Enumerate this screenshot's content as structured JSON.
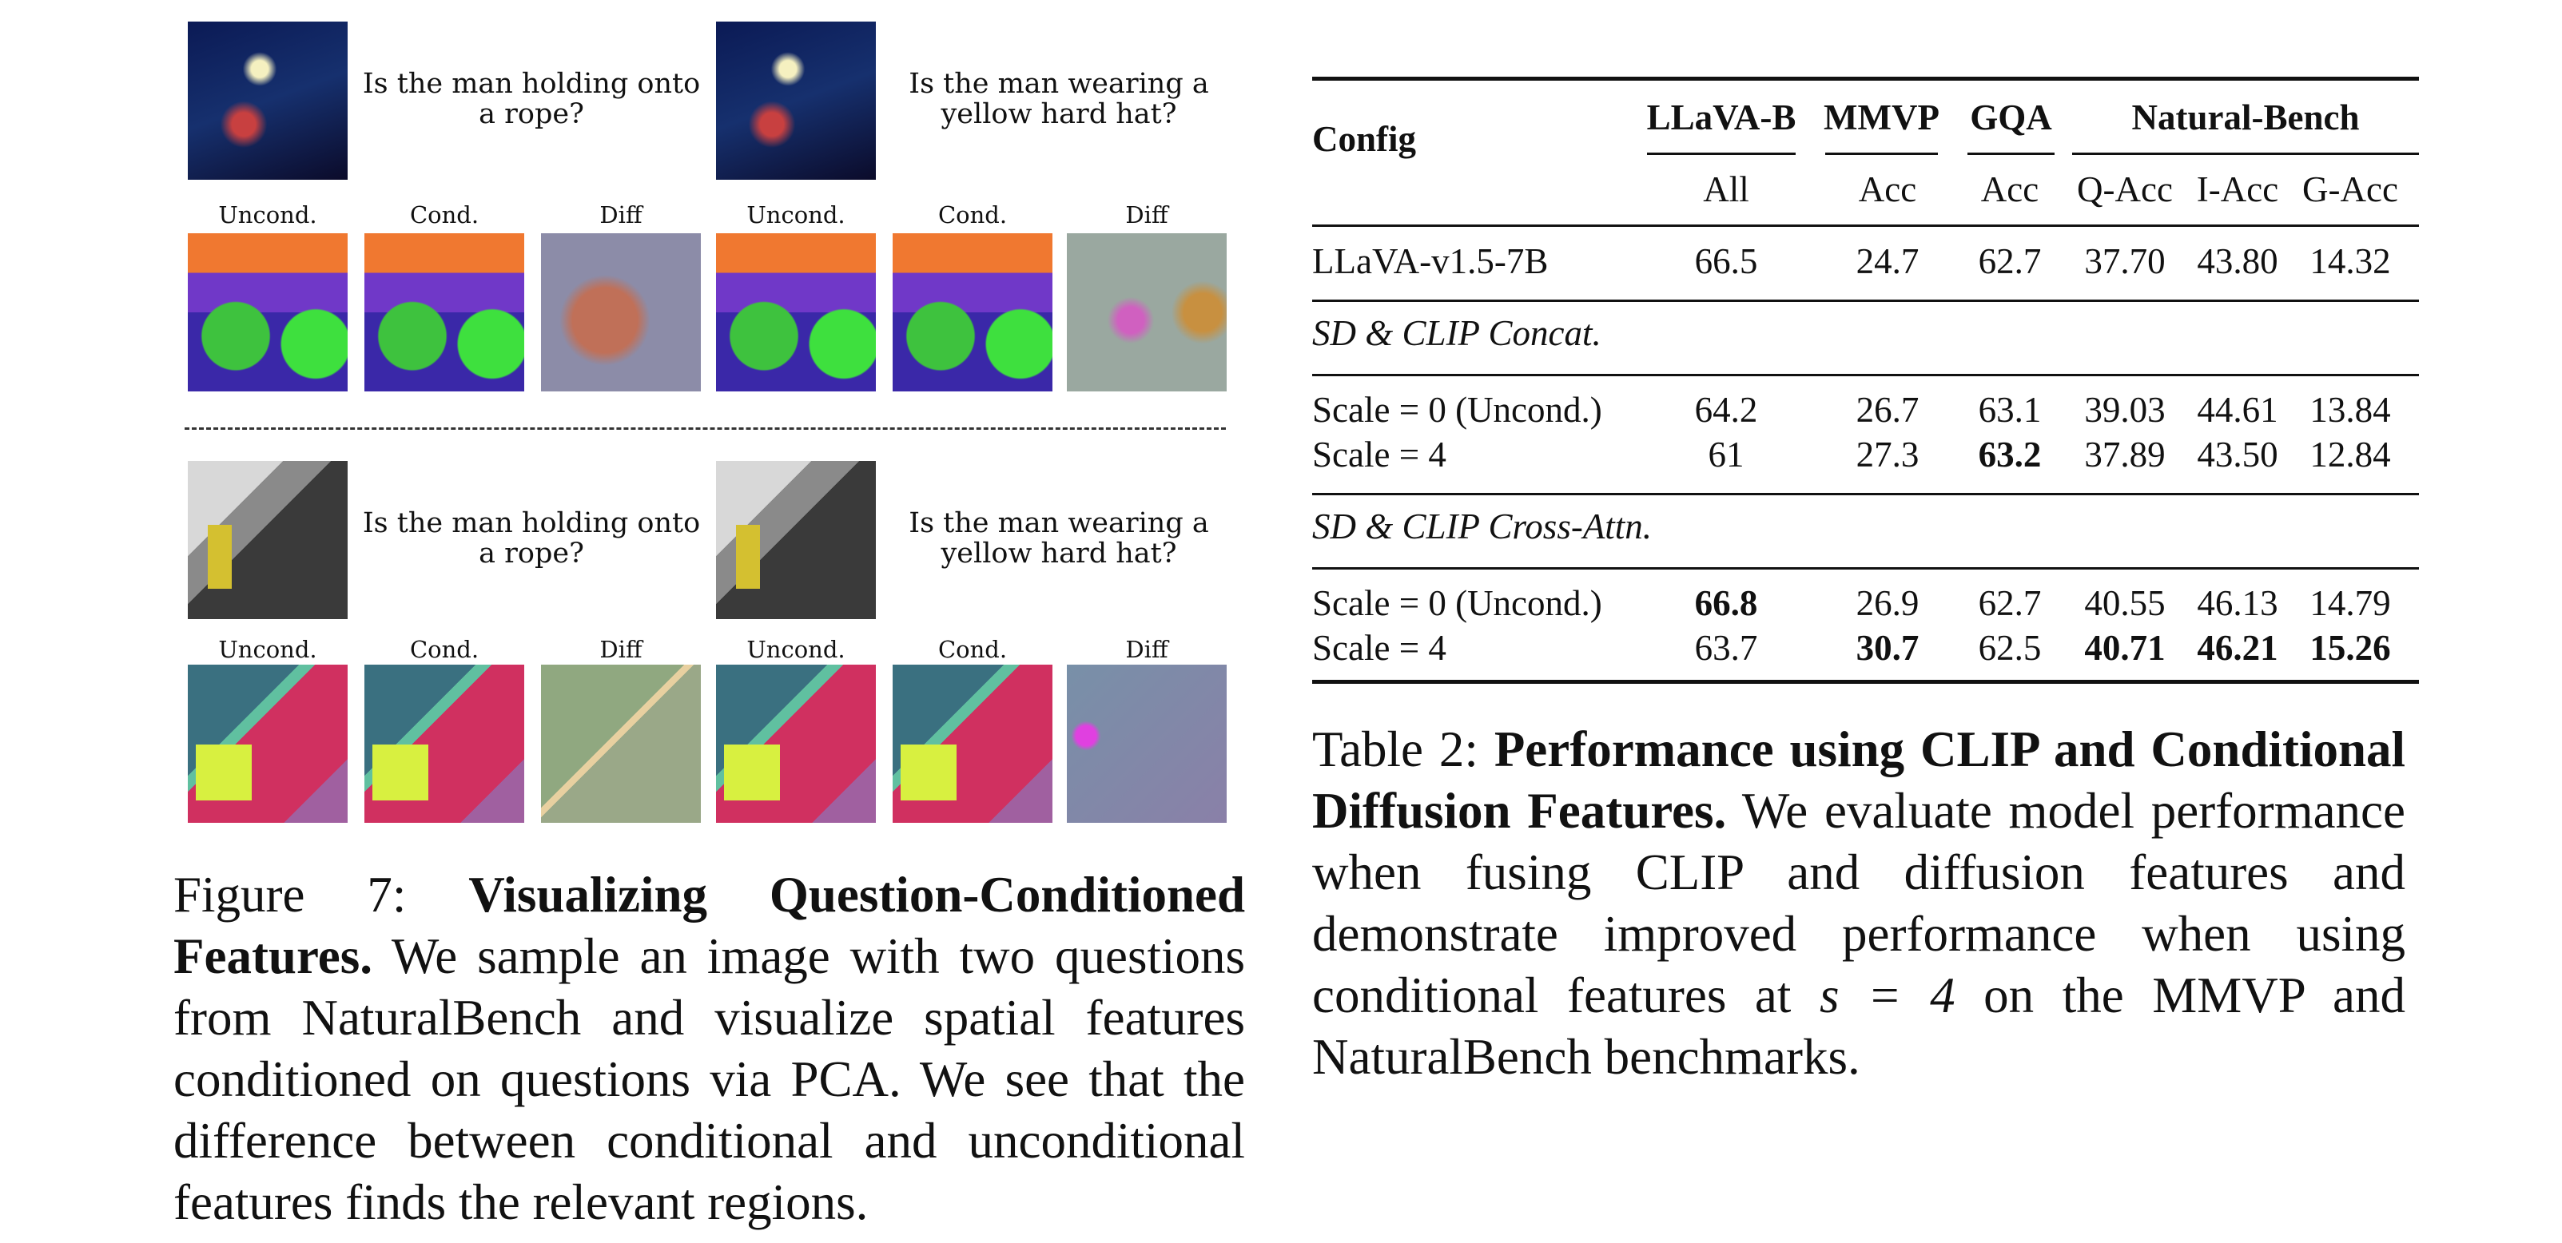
{
  "figure": {
    "panels": [
      {
        "questions": [
          "Is the man holding onto a rope?",
          "Is the man wearing a yellow hard hat?"
        ]
      },
      {
        "questions": [
          "Is the man holding onto a rope?",
          "Is the man wearing a yellow hard hat?"
        ]
      }
    ],
    "labels": [
      "Uncond.",
      "Cond.",
      "Diff"
    ],
    "caption": {
      "label": "Figure 7:",
      "title": "Visualizing Question-Conditioned Features.",
      "text": "We sample an image with two questions from NaturalBench and visualize spatial features conditioned on questions via PCA. We see that the difference between conditional and unconditional features finds the relevant regions."
    }
  },
  "table": {
    "config": "Config",
    "groups": [
      "LLaVA-B",
      "MMVP",
      "GQA",
      "Natural-Bench"
    ],
    "subheaders": [
      "All",
      "Acc",
      "Acc",
      "Q-Acc",
      "I-Acc",
      "G-Acc"
    ],
    "sections": [
      {
        "rows": [
          {
            "cells": [
              "LLaVA-v1.5-7B",
              "66.5",
              "24.7",
              "62.7",
              "37.70",
              "43.80",
              "14.32"
            ],
            "bold": []
          }
        ]
      },
      {
        "title": "SD & CLIP Concat.",
        "rows": [
          {
            "cells": [
              "Scale = 0 (Uncond.)",
              "64.2",
              "26.7",
              "63.1",
              "39.03",
              "44.61",
              "13.84"
            ],
            "bold": []
          },
          {
            "cells": [
              "Scale = 4",
              "61",
              "27.3",
              "63.2",
              "37.89",
              "43.50",
              "12.84"
            ],
            "bold": [
              3
            ]
          }
        ]
      },
      {
        "title": "SD & CLIP Cross-Attn.",
        "rows": [
          {
            "cells": [
              "Scale = 0 (Uncond.)",
              "66.8",
              "26.9",
              "62.7",
              "40.55",
              "46.13",
              "14.79"
            ],
            "bold": [
              1
            ]
          },
          {
            "cells": [
              "Scale = 4",
              "63.7",
              "30.7",
              "62.5",
              "40.71",
              "46.21",
              "15.26"
            ],
            "bold": [
              2,
              4,
              5,
              6
            ]
          }
        ]
      }
    ],
    "caption": {
      "label": "Table 2:",
      "title": "Performance using CLIP and Conditional Diffusion Features.",
      "text_before": "We evaluate model performance when fusing CLIP and diffusion features and demonstrate improved performance when using conditional features at",
      "math": "s = 4",
      "text_after": "on the MMVP and NaturalBench benchmarks."
    }
  }
}
